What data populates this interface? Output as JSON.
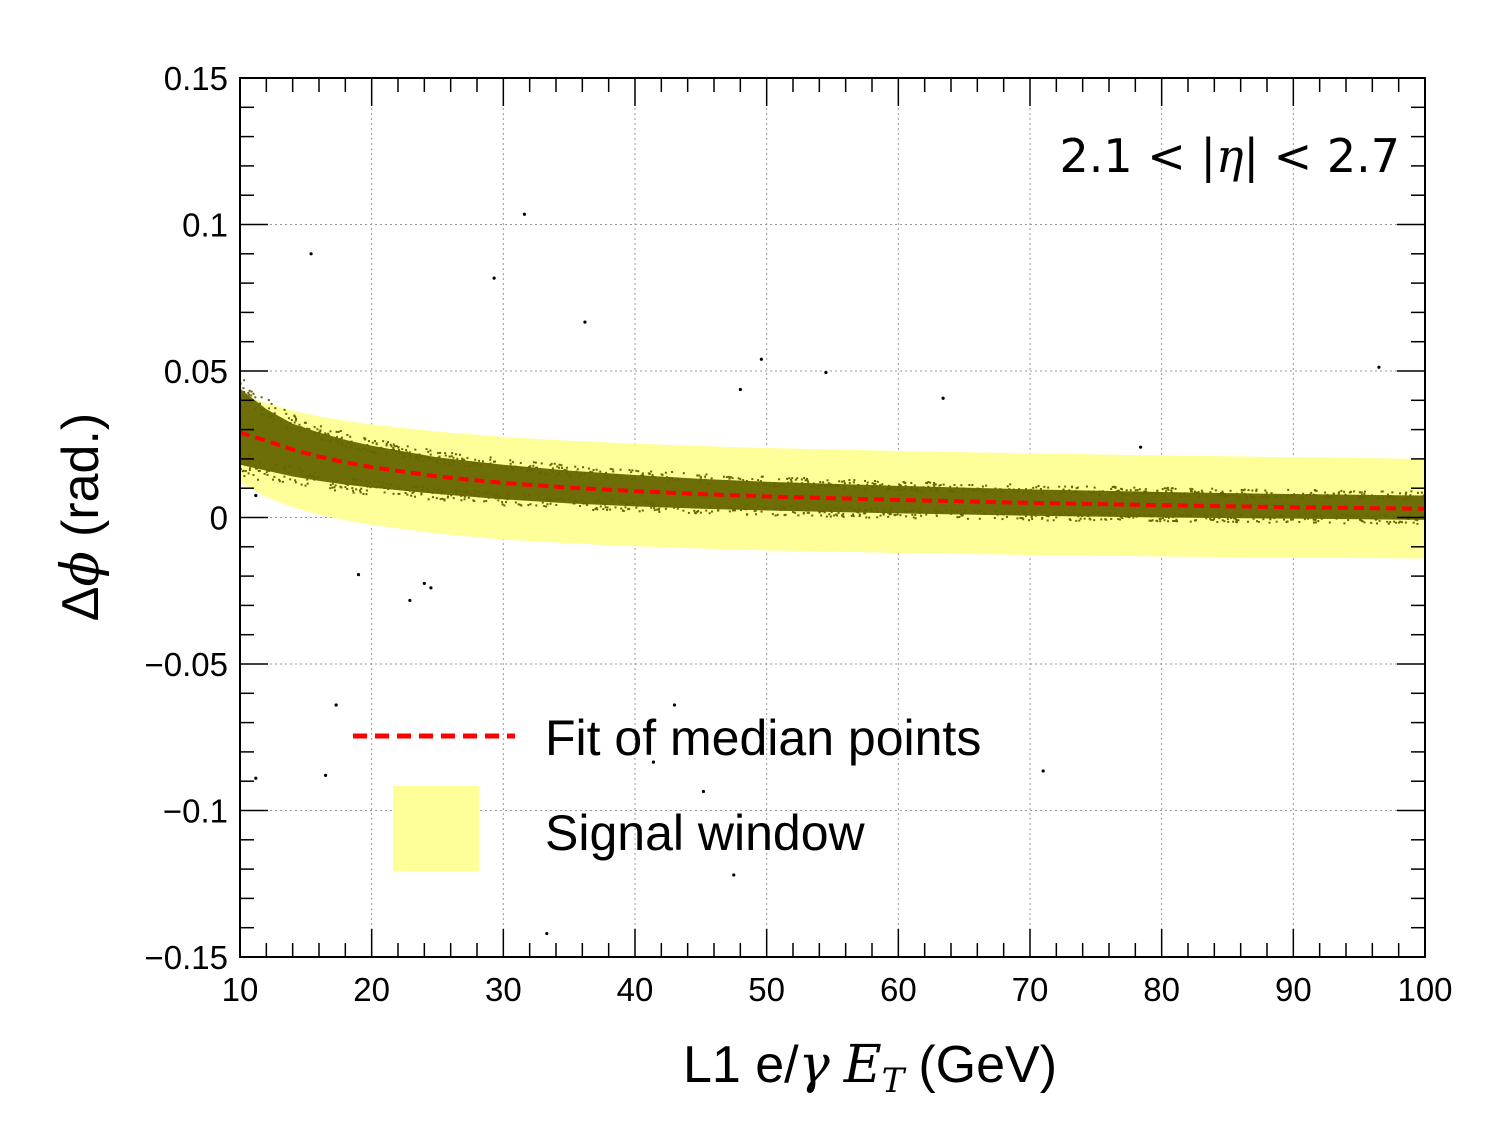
{
  "chart_data": {
    "type": "scatter",
    "xlabel": "L1 e/γ E_T (GeV)",
    "xlabel_parts": {
      "prefix": "L1 e/",
      "gamma": "γ",
      "E": "E",
      "sub": "T",
      "suffix": "(GeV)"
    },
    "ylabel": "Δϕ (rad.)",
    "ylabel_parts": {
      "delta": "Δ",
      "phi": "ϕ",
      "suffix": "(rad.)"
    },
    "xlim": [
      10,
      100
    ],
    "ylim": [
      -0.15,
      0.15
    ],
    "grid": true,
    "x_ticks": [
      10,
      20,
      30,
      40,
      50,
      60,
      70,
      80,
      90,
      100
    ],
    "x_tick_labels": [
      "10",
      "20",
      "30",
      "40",
      "50",
      "60",
      "70",
      "80",
      "90",
      "100"
    ],
    "y_ticks": [
      -0.15,
      -0.1,
      -0.05,
      0,
      0.05,
      0.1,
      0.15
    ],
    "y_tick_labels": [
      "−0.15",
      "−0.1",
      "−0.05",
      "0",
      "0.05",
      "0.1",
      "0.15"
    ],
    "annotation": "2.1 < |η| < 2.7",
    "annotation_parts": {
      "left": "2.1 < |",
      "eta": "η",
      "right": "| < 2.7"
    },
    "legend": [
      {
        "label": "Fit of median points",
        "style": "dashed-line",
        "color": "#ff0000"
      },
      {
        "label": "Signal window",
        "style": "filled-box",
        "color": "#ffff99"
      }
    ],
    "median_fit": {
      "x": [
        10,
        12,
        14,
        16,
        18,
        20,
        25,
        30,
        35,
        40,
        45,
        50,
        60,
        70,
        80,
        90,
        100
      ],
      "values": [
        0.029,
        0.0262,
        0.0232,
        0.0208,
        0.0188,
        0.0172,
        0.014,
        0.0118,
        0.0102,
        0.009,
        0.008,
        0.0072,
        0.006,
        0.005,
        0.0042,
        0.0035,
        0.003
      ]
    },
    "signal_window": {
      "x": [
        10,
        12,
        14,
        16,
        18,
        20,
        25,
        30,
        35,
        40,
        45,
        50,
        60,
        70,
        80,
        90,
        100
      ],
      "upper": [
        0.042,
        0.039,
        0.0365,
        0.0345,
        0.033,
        0.0318,
        0.0293,
        0.0275,
        0.0262,
        0.0252,
        0.0244,
        0.0237,
        0.0227,
        0.0219,
        0.0212,
        0.0206,
        0.02
      ],
      "lower": [
        0.012,
        0.007,
        0.0035,
        0.001,
        -0.001,
        -0.0025,
        -0.0055,
        -0.0075,
        -0.0088,
        -0.0098,
        -0.0106,
        -0.0112,
        -0.0121,
        -0.0128,
        -0.0133,
        -0.0137,
        -0.014
      ]
    },
    "band": {
      "x": [
        10,
        12,
        14,
        16,
        18,
        20,
        25,
        30,
        35,
        40,
        45,
        50,
        60,
        70,
        80,
        90,
        100
      ],
      "upper": [
        0.044,
        0.037,
        0.032,
        0.029,
        0.0265,
        0.0245,
        0.0205,
        0.018,
        0.016,
        0.0145,
        0.0132,
        0.0122,
        0.0108,
        0.0096,
        0.0087,
        0.008,
        0.0075
      ],
      "lower": [
        0.018,
        0.016,
        0.014,
        0.0125,
        0.0112,
        0.0102,
        0.008,
        0.0062,
        0.0048,
        0.0038,
        0.003,
        0.0024,
        0.0014,
        0.0006,
        0.0,
        -0.0004,
        -0.0008
      ],
      "color": "#666600"
    },
    "outliers": {
      "x": [
        15.4,
        31.6,
        29.3,
        36.2,
        49.6,
        54.5,
        48.0,
        63.4,
        78.4,
        96.5,
        11.2,
        19.0,
        22.9,
        24.0,
        24.5,
        17.3,
        16.5,
        11.2,
        41.4,
        43.0,
        45.2,
        47.5,
        33.3,
        71.0
      ],
      "y": [
        0.09,
        0.1035,
        0.0817,
        0.0667,
        0.054,
        0.0495,
        0.0437,
        0.0407,
        0.024,
        0.0513,
        0.0075,
        -0.0195,
        -0.0283,
        -0.0225,
        -0.024,
        -0.064,
        -0.088,
        -0.089,
        -0.0835,
        -0.064,
        -0.0935,
        -0.122,
        -0.142,
        -0.0865
      ]
    },
    "colors": {
      "fit": "#ff0000",
      "window": "#ffff99",
      "band": "#666600",
      "grid": "#999999",
      "axis": "#000000"
    }
  }
}
